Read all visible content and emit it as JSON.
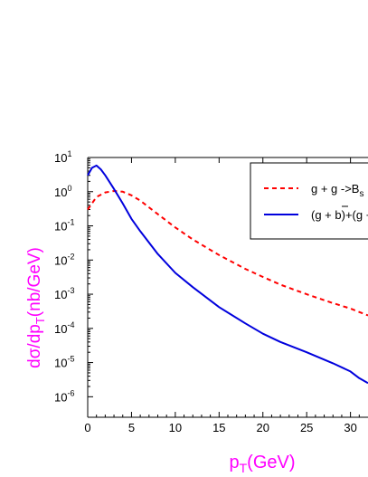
{
  "chart_data": {
    "type": "line",
    "xlabel": {
      "main": "p",
      "sub": "T",
      "tail": "(GeV)"
    },
    "ylabel": {
      "pre": "dσ/dp",
      "sub": "T",
      "tail": "(nb/GeV)"
    },
    "xlim": [
      0,
      32
    ],
    "ylim_log10": [
      -6.6,
      1
    ],
    "yscale": "log",
    "x_ticks": [
      0,
      5,
      10,
      15,
      20,
      25,
      30
    ],
    "y_ticks": [
      {
        "exp": 1,
        "label_base": "10",
        "label_exp": "1"
      },
      {
        "exp": 0,
        "label_base": "10",
        "label_exp": "0"
      },
      {
        "exp": -1,
        "label_base": "10",
        "label_exp": "-1"
      },
      {
        "exp": -2,
        "label_base": "10",
        "label_exp": "-2"
      },
      {
        "exp": -3,
        "label_base": "10",
        "label_exp": "-3"
      },
      {
        "exp": -4,
        "label_base": "10",
        "label_exp": "-4"
      },
      {
        "exp": -5,
        "label_base": "10",
        "label_exp": "-5"
      },
      {
        "exp": -6,
        "label_base": "10",
        "label_exp": "-6"
      }
    ],
    "grid": false,
    "legend_position": "top-right",
    "axis_title_color": "#ff00ff",
    "series": [
      {
        "key": "gg",
        "name_parts": {
          "main": "g + g ->B",
          "sub": "s"
        },
        "color": "#ff0000",
        "style": "dashed",
        "x": [
          0,
          1,
          2,
          3,
          4,
          5,
          6,
          8,
          10,
          12,
          15,
          18,
          20,
          22,
          25,
          28,
          30,
          32
        ],
        "y": [
          0.3,
          0.7,
          0.95,
          1.05,
          1.0,
          0.78,
          0.55,
          0.22,
          0.09,
          0.04,
          0.014,
          0.0055,
          0.0032,
          0.0019,
          0.001,
          0.00055,
          0.00038,
          0.00024
        ]
      },
      {
        "key": "gb",
        "name_parts": {
          "pre": "(g + ",
          "over": "b",
          "tail": ")+(g + c)"
        },
        "color": "#0000dd",
        "style": "solid",
        "x": [
          0,
          0.5,
          1,
          1.5,
          2,
          3,
          4,
          5,
          6,
          8,
          10,
          12,
          15,
          18,
          20,
          22,
          25,
          28,
          30,
          31,
          32
        ],
        "y": [
          3.0,
          5.0,
          5.8,
          4.5,
          3.0,
          1.2,
          0.45,
          0.16,
          0.07,
          0.015,
          0.0042,
          0.0016,
          0.00042,
          0.00014,
          7e-05,
          4e-05,
          2e-05,
          9.5e-06,
          5.5e-06,
          3.5e-06,
          2.5e-06
        ]
      }
    ]
  }
}
